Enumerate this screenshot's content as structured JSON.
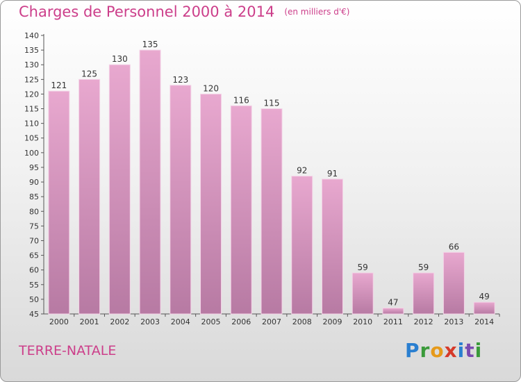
{
  "header": {
    "title": "Charges de Personnel 2000 à 2014",
    "subtitle": "(en milliers d'€)"
  },
  "commune_name": "TERRE-NATALE",
  "logo": {
    "text": "Proxiti",
    "letters": [
      "P",
      "r",
      "o",
      "x",
      "i",
      "t",
      "i"
    ]
  },
  "colors": {
    "accent": "#cc3e8a",
    "bar_top": "#e8a8cf",
    "bar_bottom": "#b77aa3",
    "bar_edge": "#f4d3e7"
  },
  "chart_data": {
    "type": "bar",
    "title": "Charges de Personnel 2000 à 2014",
    "subtitle": "(en milliers d'€)",
    "categories": [
      "2000",
      "2001",
      "2002",
      "2003",
      "2004",
      "2005",
      "2006",
      "2007",
      "2008",
      "2009",
      "2010",
      "2011",
      "2012",
      "2013",
      "2014"
    ],
    "values": [
      121,
      125,
      130,
      135,
      123,
      120,
      116,
      115,
      92,
      91,
      59,
      47,
      59,
      66,
      49
    ],
    "ylim": [
      45,
      140
    ],
    "yticks": [
      45,
      50,
      55,
      60,
      65,
      70,
      75,
      80,
      85,
      90,
      95,
      100,
      105,
      110,
      115,
      120,
      125,
      130,
      135,
      140
    ],
    "grid": false,
    "data_labels": true
  }
}
